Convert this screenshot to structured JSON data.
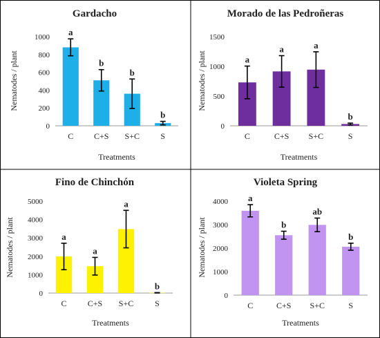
{
  "chart_data": [
    {
      "type": "bar",
      "title": "Gardacho",
      "xlabel": "Treatments",
      "ylabel": "Nematodes / plant",
      "categories": [
        "C",
        "C+S",
        "S+C",
        "S"
      ],
      "values": [
        880,
        510,
        360,
        30
      ],
      "errors": [
        95,
        120,
        165,
        20
      ],
      "letters": [
        "a",
        "b",
        "b",
        "b"
      ],
      "ylim": [
        0,
        1000
      ],
      "yticks": [
        0,
        200,
        400,
        600,
        800,
        1000
      ],
      "color": "#1EAEE8"
    },
    {
      "type": "bar",
      "title": "Morado de las Pedroñeras",
      "xlabel": "Treatments",
      "ylabel": "Nematodes / plant",
      "categories": [
        "C",
        "C+S",
        "S+C",
        "S"
      ],
      "values": [
        730,
        915,
        945,
        30
      ],
      "errors": [
        275,
        265,
        300,
        15
      ],
      "letters": [
        "a",
        "a",
        "a",
        "b"
      ],
      "ylim": [
        0,
        1500
      ],
      "yticks": [
        0,
        500,
        1000,
        1500
      ],
      "color": "#6F2E9E"
    },
    {
      "type": "bar",
      "title": "Fino de Chinchón",
      "xlabel": "Treatments",
      "ylabel": "Nematodes / plant",
      "categories": [
        "C",
        "C+S",
        "S+C",
        "S"
      ],
      "values": [
        1990,
        1460,
        3480,
        15
      ],
      "errors": [
        720,
        480,
        1020,
        10
      ],
      "letters": [
        "a",
        "a",
        "a",
        "b"
      ],
      "ylim": [
        0,
        5000
      ],
      "yticks": [
        0,
        1000,
        2000,
        3000,
        4000,
        5000
      ],
      "color": "#FFF200"
    },
    {
      "type": "bar",
      "title": "Violeta Spring",
      "xlabel": "Treatments",
      "ylabel": "Nematodes / plant",
      "categories": [
        "C",
        "C+S",
        "S+C",
        "S"
      ],
      "values": [
        3590,
        2550,
        2990,
        2060
      ],
      "errors": [
        260,
        170,
        290,
        150
      ],
      "letters": [
        "a",
        "b",
        "ab",
        "b"
      ],
      "ylim": [
        0,
        4000
      ],
      "yticks": [
        0,
        1000,
        2000,
        3000,
        4000
      ],
      "color": "#C294F2"
    }
  ]
}
